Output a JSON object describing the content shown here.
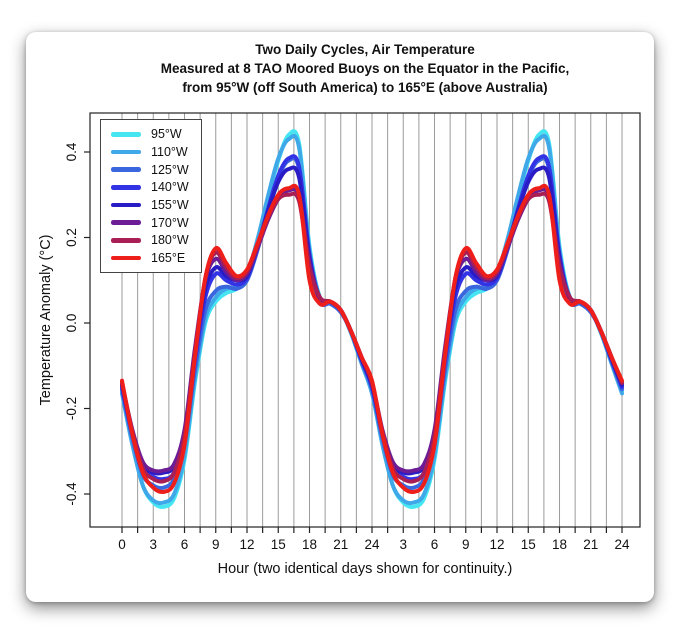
{
  "chart_data": {
    "type": "line",
    "title_lines": [
      "Two Daily Cycles, Air Temperature",
      "Measured at 8 TAO Moored Buoys on the Equator in the Pacific,",
      "from 95°W (off South America) to 165°E (above Australia)"
    ],
    "xlabel": "Hour (two identical days shown for continuity.)",
    "ylabel": "Temperature Anomaly (°C)",
    "x_hours": [
      0,
      1,
      2,
      3,
      4,
      5,
      6,
      7,
      8,
      9,
      10,
      11,
      12,
      13,
      14,
      15,
      16,
      17,
      18,
      19,
      20,
      21,
      22,
      23,
      24
    ],
    "x_tick_hours": [
      0,
      3,
      6,
      9,
      12,
      15,
      18,
      21,
      24,
      27,
      30,
      33,
      36,
      39,
      42,
      45,
      48
    ],
    "x_tick_labels": [
      "0",
      "3",
      "6",
      "9",
      "12",
      "15",
      "18",
      "21",
      "24",
      "3",
      "6",
      "9",
      "12",
      "15",
      "18",
      "21",
      "24"
    ],
    "x_minor_tick_step_hours": 1.5,
    "y_ticks": [
      -0.4,
      -0.2,
      0.0,
      0.2,
      0.4
    ],
    "y_tick_labels": [
      "-0.4",
      "-0.2",
      "0.0",
      "0.2",
      "0.4"
    ],
    "xlim_hours": [
      0,
      48
    ],
    "ylim": [
      -0.47,
      0.48
    ],
    "grid": "vertical-only",
    "grid_color": "#9b9b9b",
    "box_color": "#222222",
    "legend_position": "top-left",
    "days_shown": 2,
    "note": "two identical 24-hour days concatenated on the x axis",
    "series": [
      {
        "name": "95°W",
        "color": "#45E5F2",
        "values": [
          -0.16,
          -0.28,
          -0.38,
          -0.42,
          -0.43,
          -0.41,
          -0.32,
          -0.14,
          0.0,
          0.05,
          0.07,
          0.08,
          0.11,
          0.19,
          0.29,
          0.38,
          0.44,
          0.42,
          0.18,
          0.06,
          0.05,
          0.03,
          -0.02,
          -0.09,
          -0.16
        ]
      },
      {
        "name": "110°W",
        "color": "#3FA8E8",
        "values": [
          -0.165,
          -0.285,
          -0.38,
          -0.415,
          -0.42,
          -0.4,
          -0.31,
          -0.13,
          0.01,
          0.06,
          0.08,
          0.085,
          0.115,
          0.195,
          0.295,
          0.385,
          0.43,
          0.41,
          0.17,
          0.06,
          0.05,
          0.03,
          -0.025,
          -0.095,
          -0.165
        ]
      },
      {
        "name": "125°W",
        "color": "#3A66DE",
        "values": [
          -0.155,
          -0.27,
          -0.355,
          -0.38,
          -0.385,
          -0.365,
          -0.285,
          -0.11,
          0.03,
          0.075,
          0.085,
          0.08,
          0.1,
          0.17,
          0.26,
          0.34,
          0.38,
          0.36,
          0.15,
          0.05,
          0.045,
          0.025,
          -0.02,
          -0.09,
          -0.155
        ]
      },
      {
        "name": "140°W",
        "color": "#3333E6",
        "values": [
          -0.15,
          -0.26,
          -0.34,
          -0.36,
          -0.365,
          -0.35,
          -0.27,
          -0.09,
          0.06,
          0.115,
          0.1,
          0.09,
          0.105,
          0.175,
          0.265,
          0.345,
          0.385,
          0.365,
          0.16,
          0.055,
          0.05,
          0.03,
          -0.02,
          -0.085,
          -0.15
        ]
      },
      {
        "name": "155°W",
        "color": "#2A1CC4",
        "values": [
          -0.145,
          -0.255,
          -0.33,
          -0.35,
          -0.35,
          -0.335,
          -0.255,
          -0.07,
          0.08,
          0.13,
          0.11,
          0.1,
          0.11,
          0.18,
          0.26,
          0.33,
          0.36,
          0.34,
          0.15,
          0.055,
          0.05,
          0.03,
          -0.02,
          -0.085,
          -0.145
        ]
      },
      {
        "name": "170°W",
        "color": "#6C1D96",
        "values": [
          -0.14,
          -0.25,
          -0.325,
          -0.345,
          -0.345,
          -0.33,
          -0.25,
          -0.06,
          0.1,
          0.15,
          0.12,
          0.1,
          0.115,
          0.175,
          0.24,
          0.29,
          0.31,
          0.295,
          0.14,
          0.06,
          0.05,
          0.03,
          -0.02,
          -0.08,
          -0.14
        ]
      },
      {
        "name": "180°W",
        "color": "#A81E55",
        "values": [
          -0.14,
          -0.255,
          -0.34,
          -0.365,
          -0.37,
          -0.35,
          -0.265,
          -0.07,
          0.105,
          0.165,
          0.13,
          0.105,
          0.12,
          0.18,
          0.245,
          0.29,
          0.3,
          0.285,
          0.13,
          0.06,
          0.05,
          0.03,
          -0.02,
          -0.08,
          -0.14
        ]
      },
      {
        "name": "165°E",
        "color": "#EE1F1B",
        "values": [
          -0.135,
          -0.26,
          -0.35,
          -0.385,
          -0.395,
          -0.375,
          -0.285,
          -0.08,
          0.105,
          0.175,
          0.14,
          0.11,
          0.125,
          0.185,
          0.25,
          0.3,
          0.315,
          0.3,
          0.1,
          0.045,
          0.05,
          0.03,
          -0.02,
          -0.08,
          -0.135
        ]
      }
    ]
  }
}
